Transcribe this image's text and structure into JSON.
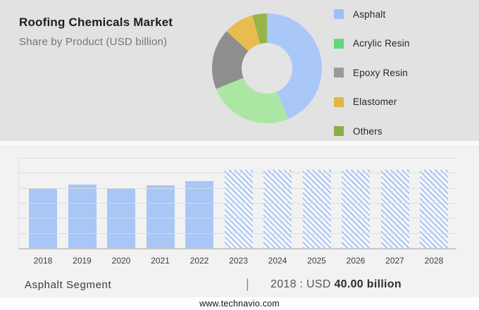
{
  "header": {
    "title": "Roofing Chemicals Market",
    "subtitle": "Share by Product (USD billion)"
  },
  "legend": {
    "items": [
      {
        "label": "Asphalt",
        "color": "#9fc0f7"
      },
      {
        "label": "Acrylic Resin",
        "color": "#5ed97b"
      },
      {
        "label": "Epoxy Resin",
        "color": "#9a9a9a"
      },
      {
        "label": "Elastomer",
        "color": "#e0b840"
      },
      {
        "label": "Others",
        "color": "#8fad45"
      }
    ]
  },
  "chart_data": [
    {
      "type": "pie",
      "donut": true,
      "title": "Roofing Chemicals Market — Share by Product (USD billion)",
      "labels": [
        "Asphalt",
        "Acrylic Resin",
        "Epoxy Resin",
        "Elastomer",
        "Others"
      ],
      "values": [
        43.6,
        25.3,
        17.9,
        8.9,
        4.3
      ],
      "colors": [
        "#a9c7f7",
        "#abe7a3",
        "#8e8e8e",
        "#e8bc4e",
        "#96b44a"
      ],
      "hole_ratio": 0.46,
      "legend_position": "right"
    },
    {
      "type": "bar",
      "title": "Asphalt Segment (USD billion)",
      "categories": [
        "2018",
        "2019",
        "2020",
        "2021",
        "2022",
        "2023",
        "2024",
        "2025",
        "2026",
        "2027",
        "2028"
      ],
      "values": [
        40.0,
        42.7,
        40.0,
        42.3,
        45.0,
        52.5,
        52.5,
        52.5,
        52.5,
        52.5,
        52.5
      ],
      "forecast_start_index": 5,
      "ylim": [
        0,
        60
      ],
      "gridline_step": 10,
      "grid": true,
      "bar_color": "#a8c6f6",
      "forecast_hatch_color": "#aac4ef",
      "xlabel": "",
      "ylabel": ""
    }
  ],
  "footnote": {
    "segment_label": "Asphalt Segment",
    "separator": "|",
    "value_prefix": "2018 : USD",
    "value_bold": "40.00 billion"
  },
  "footer": {
    "website": "www.technavio.com"
  }
}
